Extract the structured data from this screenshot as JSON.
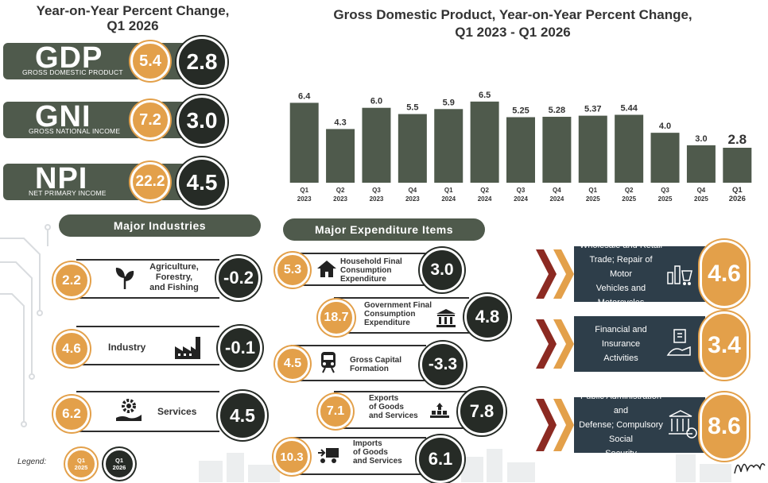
{
  "left_title": [
    "Year-on-Year Percent Change,",
    "Q1 2026"
  ],
  "kpis": [
    {
      "abbr": "GDP",
      "name": "GROSS DOMESTIC PRODUCT",
      "q1_2025": "5.4",
      "q1_2026": "2.8"
    },
    {
      "abbr": "GNI",
      "name": "GROSS NATIONAL INCOME",
      "q1_2025": "7.2",
      "q1_2026": "3.0"
    },
    {
      "abbr": "NPI",
      "name": "NET PRIMARY INCOME",
      "q1_2025": "22.2",
      "q1_2026": "4.5"
    }
  ],
  "chart_data": {
    "type": "bar",
    "title": "Gross Domestic Product, Year-on-Year Percent Change, Q1 2023 - Q1 2026",
    "title_lines": [
      "Gross Domestic Product, Year-on-Year Percent Change,",
      "Q1 2023 - Q1 2026"
    ],
    "categories": [
      [
        "Q1",
        "2023"
      ],
      [
        "Q2",
        "2023"
      ],
      [
        "Q3",
        "2023"
      ],
      [
        "Q4",
        "2023"
      ],
      [
        "Q1",
        "2024"
      ],
      [
        "Q2",
        "2024"
      ],
      [
        "Q3",
        "2024"
      ],
      [
        "Q4",
        "2024"
      ],
      [
        "Q1",
        "2025"
      ],
      [
        "Q2",
        "2025"
      ],
      [
        "Q3",
        "2025"
      ],
      [
        "Q4",
        "2025"
      ],
      [
        "Q1",
        "2026"
      ]
    ],
    "values": [
      6.4,
      4.3,
      6.0,
      5.5,
      5.9,
      6.5,
      5.25,
      5.28,
      5.37,
      5.44,
      4.0,
      3.0,
      2.8
    ],
    "value_labels": [
      "6.4",
      "4.3",
      "6.0",
      "5.5",
      "5.9",
      "6.5",
      "5.25",
      "5.28",
      "5.37",
      "5.44",
      "4.0",
      "3.0",
      "2.8"
    ],
    "ylim": [
      0,
      7
    ],
    "grid": false,
    "bar_color": "#4f5a4c"
  },
  "industries": {
    "title": "Major Industries",
    "items": [
      {
        "label": [
          "Agriculture,",
          "Forestry,",
          "and Fishing"
        ],
        "icon": "plant-icon",
        "q1_2025": "2.2",
        "q1_2026": "-0.2"
      },
      {
        "label": [
          "Industry"
        ],
        "icon": "factory-icon",
        "q1_2025": "4.6",
        "q1_2026": "-0.1"
      },
      {
        "label": [
          "Services"
        ],
        "icon": "gear-hand-icon",
        "q1_2025": "6.2",
        "q1_2026": "4.5"
      }
    ]
  },
  "expenditure": {
    "title": "Major Expenditure Items",
    "items": [
      {
        "label": [
          "Household Final",
          "Consumption",
          "Expenditure"
        ],
        "icon": "house-icon",
        "q1_2025": "5.3",
        "q1_2026": "3.0"
      },
      {
        "label": [
          "Government Final",
          "Consumption",
          "Expenditure"
        ],
        "icon": "government-building-icon",
        "q1_2025": "18.7",
        "q1_2026": "4.8"
      },
      {
        "label": [
          "Gross Capital",
          "Formation"
        ],
        "icon": "train-icon",
        "q1_2025": "4.5",
        "q1_2026": "-3.3"
      },
      {
        "label": [
          "Exports",
          "of Goods",
          "and Services"
        ],
        "icon": "export-goods-icon",
        "q1_2025": "7.1",
        "q1_2026": "7.8"
      },
      {
        "label": [
          "Imports",
          "of Goods",
          "and Services"
        ],
        "icon": "import-goods-icon",
        "q1_2025": "10.3",
        "q1_2026": "6.1"
      }
    ]
  },
  "sectors": [
    {
      "label": [
        "Wholesale and Retail",
        "Trade; Repair of Motor",
        "Vehicles and Motorcycles"
      ],
      "icon": "shopping-icon",
      "value": "4.6"
    },
    {
      "label": [
        "Financial and Insurance",
        "Activities"
      ],
      "icon": "finance-icon",
      "value": "3.4"
    },
    {
      "label": [
        "Public Administration and",
        "Defense; Compulsory Social",
        "Security"
      ],
      "icon": "public-admin-icon",
      "value": "8.6"
    }
  ],
  "legend": {
    "title": "Legend:",
    "q1_2025": [
      "Q1",
      "2025"
    ],
    "q1_2026": [
      "Q1",
      "2026"
    ]
  },
  "colors": {
    "orange": "#e3a04a",
    "dark": "#262b26",
    "olive": "#4f5a4c",
    "navy": "#2e3e4a",
    "chevron_red": "#8c2a22"
  }
}
